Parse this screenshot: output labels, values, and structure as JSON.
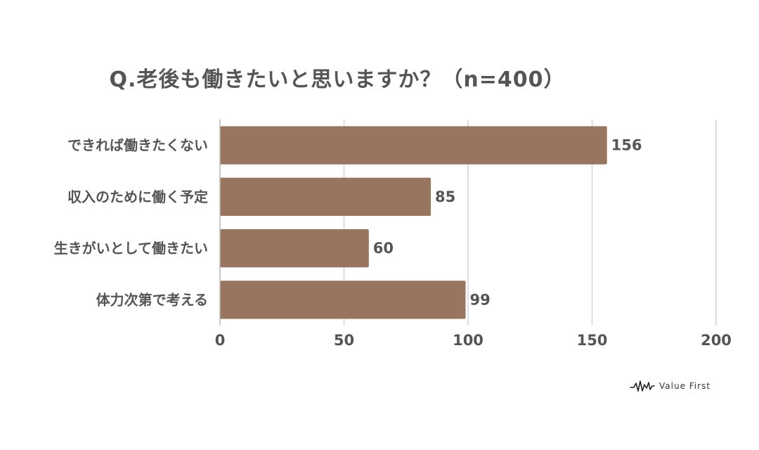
{
  "chart_data": {
    "type": "bar",
    "orientation": "horizontal",
    "title": "Q.老後も働きたいと思いますか？（n=400）",
    "categories": [
      "できれば働きたくない",
      "収入のために働く予定",
      "生きがいとして働きたい",
      "体力次第で考える"
    ],
    "values": [
      156,
      85,
      60,
      99
    ],
    "data_labels": [
      "156",
      "85",
      "60",
      "99"
    ],
    "xlim": [
      0,
      200
    ],
    "xticks": [
      0,
      50,
      100,
      150,
      200
    ],
    "xtick_labels": [
      "0",
      "50",
      "100",
      "150",
      "200"
    ],
    "grid": true,
    "bar_color": "#97755E",
    "grid_color": "#d4d4d4",
    "text_color": "#555555"
  },
  "logo": {
    "text": "Value First"
  }
}
